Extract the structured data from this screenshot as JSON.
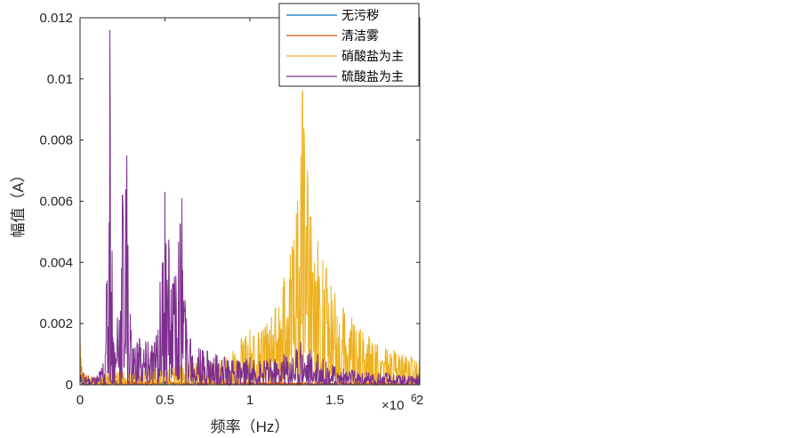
{
  "chart_data": {
    "type": "line",
    "title": "",
    "xlabel": "频率（Hz）",
    "ylabel": "幅值（A）",
    "x_multiplier": "×10",
    "x_multiplier_exp": "6",
    "xlim": [
      0,
      2
    ],
    "ylim": [
      0,
      0.012
    ],
    "xticks": [
      "0",
      "0.5",
      "1",
      "1.5",
      "2"
    ],
    "yticks": [
      "0",
      "0.002",
      "0.004",
      "0.006",
      "0.008",
      "0.01",
      "0.012"
    ],
    "grid": false,
    "legend_position": "top-right",
    "series": [
      {
        "name": "无污秽",
        "color": "#0072BD",
        "points": [
          [
            0,
            0.0002
          ],
          [
            0.005,
            0.0004
          ],
          [
            0.02,
            0.0002
          ],
          [
            0.1,
            0.0001
          ],
          [
            0.3,
            8e-05
          ],
          [
            0.6,
            6e-05
          ],
          [
            1.0,
            5e-05
          ],
          [
            1.4,
            4e-05
          ],
          [
            2.0,
            3e-05
          ]
        ]
      },
      {
        "name": "清洁雾",
        "color": "#D95319",
        "points": [
          [
            0,
            0.0005
          ],
          [
            0.005,
            0.0009
          ],
          [
            0.02,
            0.0004
          ],
          [
            0.1,
            0.0002
          ],
          [
            0.3,
            0.00015
          ],
          [
            0.6,
            0.00012
          ],
          [
            1.0,
            0.0001
          ],
          [
            1.4,
            8e-05
          ],
          [
            2.0,
            6e-05
          ]
        ]
      },
      {
        "name": "硝酸盐为主",
        "color": "#EDB120",
        "points": [
          [
            0,
            0.0015
          ],
          [
            0.01,
            0.0003
          ],
          [
            0.05,
            0.0002
          ],
          [
            0.1,
            0.0003
          ],
          [
            0.2,
            0.0005
          ],
          [
            0.3,
            0.0004
          ],
          [
            0.4,
            0.0006
          ],
          [
            0.5,
            0.0005
          ],
          [
            0.6,
            0.0007
          ],
          [
            0.7,
            0.0008
          ],
          [
            0.8,
            0.0009
          ],
          [
            0.9,
            0.0011
          ],
          [
            0.95,
            0.0015
          ],
          [
            1.0,
            0.0018
          ],
          [
            1.05,
            0.0017
          ],
          [
            1.1,
            0.002
          ],
          [
            1.15,
            0.0025
          ],
          [
            1.2,
            0.0035
          ],
          [
            1.25,
            0.0045
          ],
          [
            1.28,
            0.006
          ],
          [
            1.3,
            0.0075
          ],
          [
            1.31,
            0.0096
          ],
          [
            1.32,
            0.0082
          ],
          [
            1.34,
            0.007
          ],
          [
            1.36,
            0.0055
          ],
          [
            1.4,
            0.0047
          ],
          [
            1.45,
            0.0038
          ],
          [
            1.5,
            0.003
          ],
          [
            1.55,
            0.0025
          ],
          [
            1.6,
            0.0022
          ],
          [
            1.65,
            0.0018
          ],
          [
            1.7,
            0.0016
          ],
          [
            1.75,
            0.0013
          ],
          [
            1.8,
            0.0012
          ],
          [
            1.85,
            0.0011
          ],
          [
            1.9,
            0.001
          ],
          [
            1.95,
            0.0009
          ],
          [
            2.0,
            0.0008
          ]
        ]
      },
      {
        "name": "硫酸盐为主",
        "color": "#7E2F8E",
        "points": [
          [
            0,
            0.0004
          ],
          [
            0.05,
            0.0002
          ],
          [
            0.1,
            0.0003
          ],
          [
            0.15,
            0.001
          ],
          [
            0.175,
            0.0116
          ],
          [
            0.2,
            0.0012
          ],
          [
            0.22,
            0.0022
          ],
          [
            0.25,
            0.0062
          ],
          [
            0.275,
            0.0075
          ],
          [
            0.3,
            0.0018
          ],
          [
            0.35,
            0.0015
          ],
          [
            0.4,
            0.0014
          ],
          [
            0.45,
            0.0016
          ],
          [
            0.5,
            0.0063
          ],
          [
            0.55,
            0.0033
          ],
          [
            0.6,
            0.0061
          ],
          [
            0.62,
            0.0025
          ],
          [
            0.65,
            0.0015
          ],
          [
            0.7,
            0.0012
          ],
          [
            0.75,
            0.0011
          ],
          [
            0.8,
            0.001
          ],
          [
            0.85,
            0.0009
          ],
          [
            0.9,
            0.0008
          ],
          [
            1.0,
            0.0009
          ],
          [
            1.1,
            0.0008
          ],
          [
            1.2,
            0.001
          ],
          [
            1.3,
            0.0014
          ],
          [
            1.4,
            0.001
          ],
          [
            1.5,
            0.0006
          ],
          [
            1.6,
            0.0005
          ],
          [
            1.7,
            0.0004
          ],
          [
            1.8,
            0.0004
          ],
          [
            1.9,
            0.0003
          ],
          [
            2.0,
            0.0004
          ]
        ]
      }
    ]
  }
}
